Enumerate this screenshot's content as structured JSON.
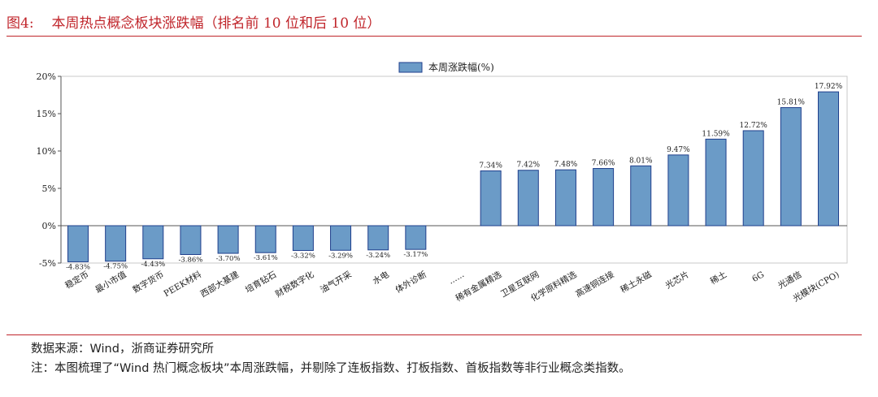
{
  "figure": {
    "label": "图4:",
    "title": "本周热点概念板块涨跌幅（排名前 10 位和后 10 位）"
  },
  "chart_data": {
    "type": "bar",
    "title": "",
    "xlabel": "",
    "ylabel": "",
    "legend": {
      "placement": "top-center"
    },
    "grid": false,
    "ylim": [
      -5,
      20
    ],
    "yticks": [
      -5,
      0,
      5,
      10,
      15,
      20
    ],
    "ytick_labels": [
      "-5%",
      "0%",
      "5%",
      "10%",
      "15%",
      "20%"
    ],
    "categories": [
      "稳定币",
      "最小市值",
      "数字货币",
      "PEEK材料",
      "西部大基建",
      "培育钻石",
      "财税数字化",
      "油气开采",
      "水电",
      "体外诊断",
      "......",
      "稀有金属精选",
      "卫星互联网",
      "化学原料精选",
      "高速铜连接",
      "稀土永磁",
      "光芯片",
      "稀土",
      "6G",
      "光通信",
      "光模块(CPO)"
    ],
    "series": [
      {
        "name": "本周涨跌幅(%)",
        "color": "#6b9bc7",
        "edge_color": "#1f3f8c",
        "values": [
          -4.83,
          -4.75,
          -4.43,
          -3.86,
          -3.7,
          -3.61,
          -3.32,
          -3.29,
          -3.24,
          -3.17,
          null,
          7.34,
          7.42,
          7.48,
          7.66,
          8.01,
          9.47,
          11.59,
          12.72,
          15.81,
          17.92
        ],
        "data_labels": [
          "-4.83%",
          "-4.75%",
          "-4.43%",
          "-3.86%",
          "-3.70%",
          "-3.61%",
          "-3.32%",
          "-3.29%",
          "-3.24%",
          "-3.17%",
          "",
          "7.34%",
          "7.42%",
          "7.48%",
          "7.66%",
          "8.01%",
          "9.47%",
          "11.59%",
          "12.72%",
          "15.81%",
          "17.92%"
        ]
      }
    ]
  },
  "footer": {
    "source": "数据来源：Wind，浙商证券研究所",
    "note": "注：本图梳理了“Wind 热门概念板块”本周涨跌幅，并剔除了连板指数、打板指数、首板指数等非行业概念类指数。"
  }
}
